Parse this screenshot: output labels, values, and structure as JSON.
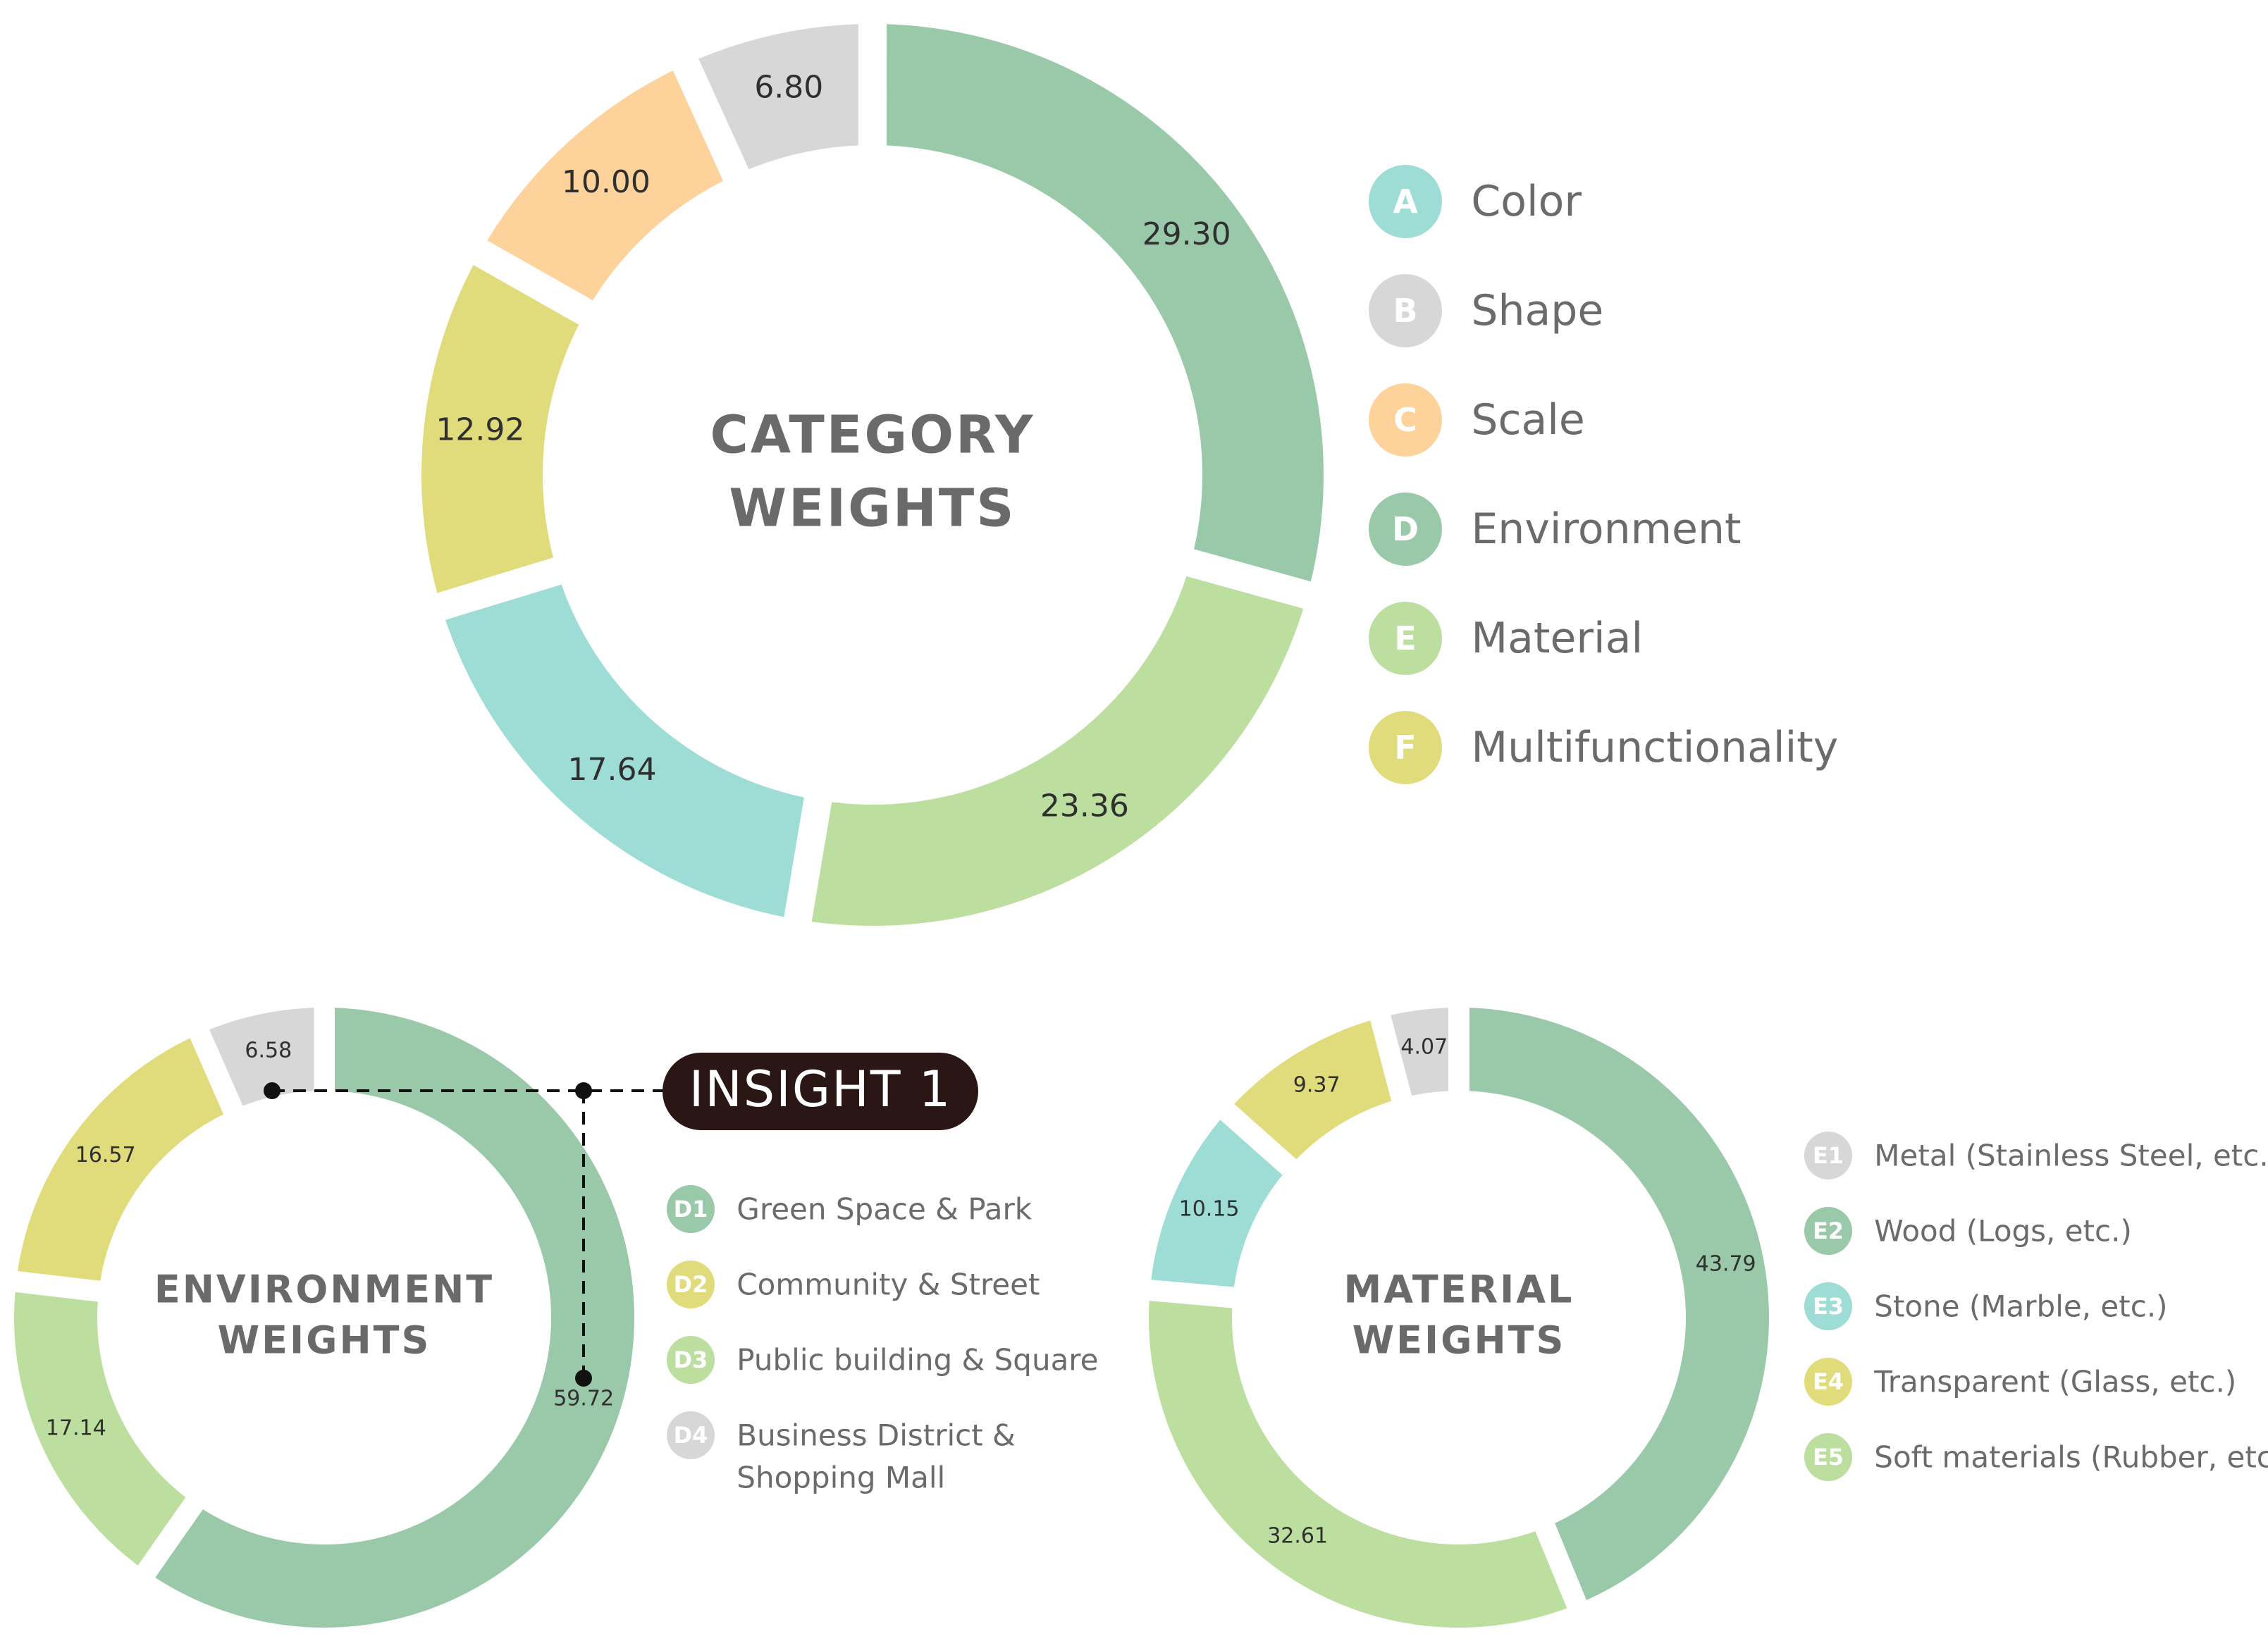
{
  "chart_data": [
    {
      "type": "donut",
      "title": "CATEGORY WEIGHTS",
      "title_lines": [
        "CATEGORY",
        "WEIGHTS"
      ],
      "slices": [
        {
          "badge": "D",
          "name": "Environment",
          "value": 29.3,
          "label": "29.30",
          "color": "#9ac9aa"
        },
        {
          "badge": "E",
          "name": "Material",
          "value": 23.36,
          "label": "23.36",
          "color": "#bcdf9f"
        },
        {
          "badge": "A",
          "name": "Color",
          "value": 17.64,
          "label": "17.64",
          "color": "#9edcd6"
        },
        {
          "badge": "F",
          "name": "Multifunctionality",
          "value": 12.92,
          "label": "12.92",
          "color": "#e1dc7b"
        },
        {
          "badge": "C",
          "name": "Scale",
          "value": 10.0,
          "label": "10.00",
          "color": "#fdd39b"
        },
        {
          "badge": "B",
          "name": "Shape",
          "value": 6.8,
          "label": "6.80",
          "color": "#d7d7d7"
        }
      ],
      "legend": [
        {
          "badge": "A",
          "label": "Color",
          "color": "#9edcd6"
        },
        {
          "badge": "B",
          "label": "Shape",
          "color": "#d7d7d7"
        },
        {
          "badge": "C",
          "label": "Scale",
          "color": "#fdd39b"
        },
        {
          "badge": "D",
          "label": "Environment",
          "color": "#9ac9aa"
        },
        {
          "badge": "E",
          "label": "Material",
          "color": "#bcdf9f"
        },
        {
          "badge": "F",
          "label": "Multifunctionality",
          "color": "#e1dc7b"
        }
      ]
    },
    {
      "type": "donut",
      "title": "ENVIRONMENT WEIGHTS",
      "title_lines": [
        "ENVIRONMENT",
        "WEIGHTS"
      ],
      "slices": [
        {
          "badge": "D1",
          "name": "Green Space & Park",
          "value": 59.72,
          "label": "59.72",
          "color": "#9ac9aa"
        },
        {
          "badge": "D3",
          "name": "Public building & Square",
          "value": 17.14,
          "label": "17.14",
          "color": "#bcdf9f"
        },
        {
          "badge": "D2",
          "name": "Community & Street",
          "value": 16.57,
          "label": "16.57",
          "color": "#e1dc7b"
        },
        {
          "badge": "D4",
          "name": "Business District & Shopping Mall",
          "value": 6.58,
          "label": "6.58",
          "color": "#d7d7d7"
        }
      ],
      "legend": [
        {
          "badge": "D1",
          "lines": [
            "Green Space & Park"
          ],
          "color": "#9ac9aa"
        },
        {
          "badge": "D2",
          "lines": [
            "Community & Street"
          ],
          "color": "#e1dc7b"
        },
        {
          "badge": "D3",
          "lines": [
            "Public building & Square"
          ],
          "color": "#bcdf9f"
        },
        {
          "badge": "D4",
          "lines": [
            "Business District &",
            "Shopping Mall"
          ],
          "color": "#d7d7d7"
        }
      ]
    },
    {
      "type": "donut",
      "title": "MATERIAL WEIGHTS",
      "title_lines": [
        "MATERIAL",
        "WEIGHTS"
      ],
      "slices": [
        {
          "badge": "E2",
          "name": "Wood (Logs, etc.)",
          "value": 43.79,
          "label": "43.79",
          "color": "#9ac9aa"
        },
        {
          "badge": "E5",
          "name": "Soft materials (Rubber, etc.)",
          "value": 32.61,
          "label": "32.61",
          "color": "#bcdf9f"
        },
        {
          "badge": "E3",
          "name": "Stone (Marble, etc.)",
          "value": 10.15,
          "label": "10.15",
          "color": "#9edcd6"
        },
        {
          "badge": "E4",
          "name": "Transparent (Glass, etc.)",
          "value": 9.37,
          "label": "9.37",
          "color": "#e1dc7b"
        },
        {
          "badge": "E1",
          "name": "Metal (Stainless Steel, etc.)",
          "value": 4.07,
          "label": "4.07",
          "color": "#d7d7d7"
        }
      ],
      "legend": [
        {
          "badge": "E1",
          "lines": [
            "Metal (Stainless Steel, etc.)"
          ],
          "color": "#d7d7d7"
        },
        {
          "badge": "E2",
          "lines": [
            "Wood (Logs, etc.)"
          ],
          "color": "#9ac9aa"
        },
        {
          "badge": "E3",
          "lines": [
            "Stone (Marble, etc.)"
          ],
          "color": "#9edcd6"
        },
        {
          "badge": "E4",
          "lines": [
            "Transparent (Glass, etc.)"
          ],
          "color": "#e1dc7b"
        },
        {
          "badge": "E5",
          "lines": [
            "Soft materials (Rubber, etc.)"
          ],
          "color": "#bcdf9f"
        }
      ]
    }
  ],
  "insight": {
    "label": "INSIGHT 1",
    "background": "#2a1614"
  }
}
